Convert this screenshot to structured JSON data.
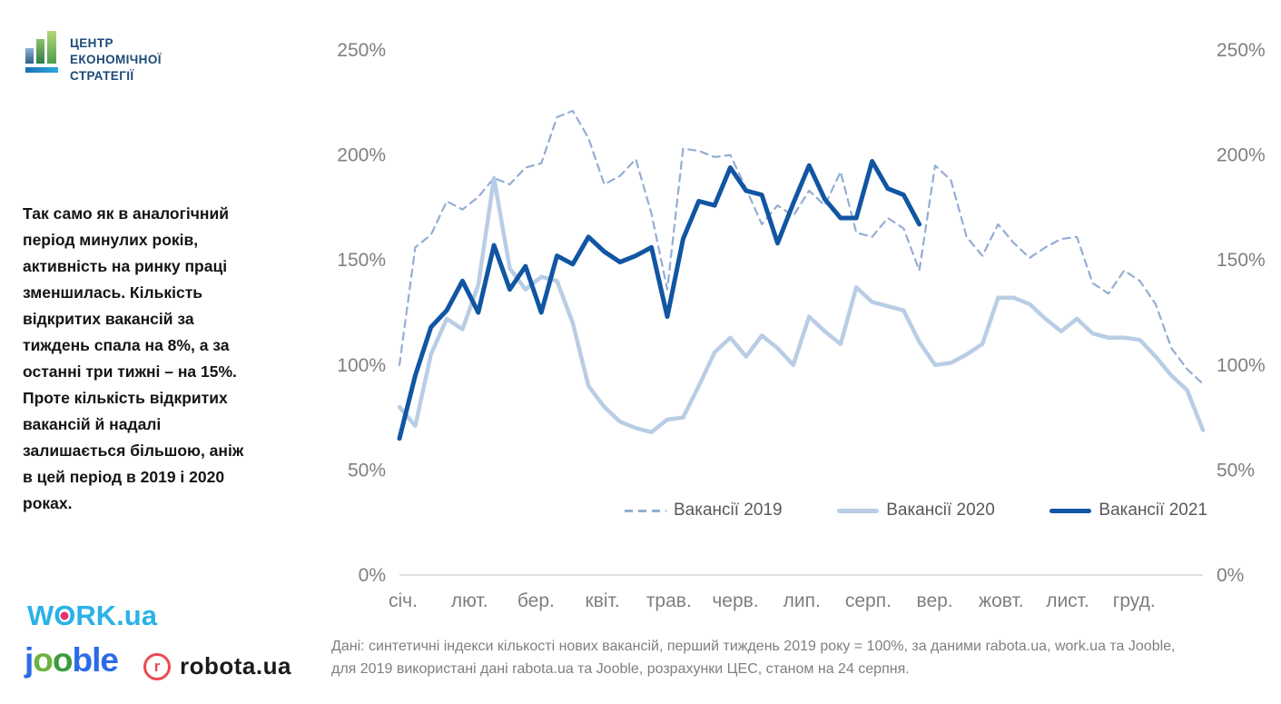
{
  "header_logo": {
    "text": "ЦЕНТР\nЕКОНОМІЧНОЇ\nСТРАТЕГІЇ"
  },
  "commentary": "Так само як в аналогічний\nперіод минулих років,\nактивність на ринку праці\nзменшилась. Кількість\nвідкритих вакансій за\nтиждень спала на 8%, а за\nостанні три тижні – на 15%.\nПроте кількість відкритих\nвакансій й надалі\nзалишається більшою, аніж\nв цей період в 2019 і 2020\nроках.",
  "footnote": "Дані: синтетичні індекси кількості нових вакансій, перший тиждень 2019 року = 100%, за даними rabota.ua, work.ua та Jooble,\nдля 2019 використані дані rabota.ua та Jooble, розрахунки ЦЕС, станом на 24 серпня.",
  "logos": {
    "work": {
      "parts": [
        {
          "t": "W",
          "c": "#2ab2e8"
        },
        {
          "t": "O",
          "c": "#2ab2e8",
          "dot": true
        },
        {
          "t": "RK",
          "c": "#2ab2e8"
        },
        {
          "t": ".ua",
          "c": "#2ab2e8"
        }
      ],
      "dot_color": "#e5326e"
    },
    "jooble": {
      "parts": [
        {
          "t": "j",
          "c": "#2b6be8"
        },
        {
          "t": "o",
          "c": "#6db33f"
        },
        {
          "t": "o",
          "c": "#3d9b3d"
        },
        {
          "t": "ble",
          "c": "#2b6be8"
        }
      ]
    },
    "robota": {
      "badge": "r",
      "badge_color": "#ea4b51",
      "text": "robota.ua"
    }
  },
  "chart_data": {
    "type": "line",
    "title": "",
    "xlabel": "",
    "ylabel": "",
    "unit": "%",
    "ylim": [
      0,
      250
    ],
    "grid": "baseline-only",
    "legend_position": "bottom-inside",
    "x_axis": {
      "categories": [
        "січ.",
        "лют.",
        "бер.",
        "квіт.",
        "трав.",
        "черв.",
        "лип.",
        "серп.",
        "вер.",
        "жовт.",
        "лист.",
        "груд."
      ]
    },
    "y_axis": {
      "ticks": [
        {
          "label": "0%",
          "value": 0
        },
        {
          "label": "50%",
          "value": 50
        },
        {
          "label": "100%",
          "value": 100
        },
        {
          "label": "150%",
          "value": 150
        },
        {
          "label": "200%",
          "value": 200
        },
        {
          "label": "250%",
          "value": 250
        }
      ],
      "shown_on": "both-sides"
    },
    "weeks_per_year": 52,
    "series": [
      {
        "name": "Вакансії 2019",
        "style": "dashed",
        "color": "#94add3",
        "values": [
          100,
          156,
          162,
          178,
          174,
          180,
          189,
          186,
          194,
          196,
          218,
          221,
          208,
          186,
          190,
          198,
          172,
          136,
          203,
          202,
          199,
          200,
          184,
          167,
          176,
          171,
          183,
          176,
          192,
          163,
          161,
          170,
          165,
          145,
          195,
          188,
          161,
          152,
          167,
          158,
          151,
          156,
          160,
          161,
          139,
          134,
          145,
          140,
          129,
          108,
          98,
          91
        ]
      },
      {
        "name": "Вакансії 2020",
        "style": "solid",
        "color": "#b9cde4",
        "values": [
          80,
          71,
          105,
          122,
          117,
          138,
          189,
          146,
          136,
          142,
          140,
          120,
          90,
          80,
          73,
          70,
          68,
          74,
          75,
          90,
          106,
          113,
          104,
          114,
          108,
          100,
          123,
          116,
          110,
          137,
          130,
          128,
          126,
          111,
          100,
          101,
          105,
          110,
          132,
          132,
          129,
          122,
          116,
          122,
          115,
          113,
          113,
          112,
          104,
          95,
          88,
          69
        ]
      },
      {
        "name": "Вакансії 2021",
        "style": "solid",
        "color": "#1155a3",
        "values": [
          65,
          95,
          118,
          126,
          140,
          125,
          157,
          136,
          147,
          125,
          152,
          148,
          161,
          154,
          149,
          152,
          156,
          123,
          160,
          178,
          176,
          194,
          183,
          181,
          158,
          177,
          195,
          179,
          170,
          170,
          197,
          184,
          181,
          167
        ]
      }
    ]
  }
}
